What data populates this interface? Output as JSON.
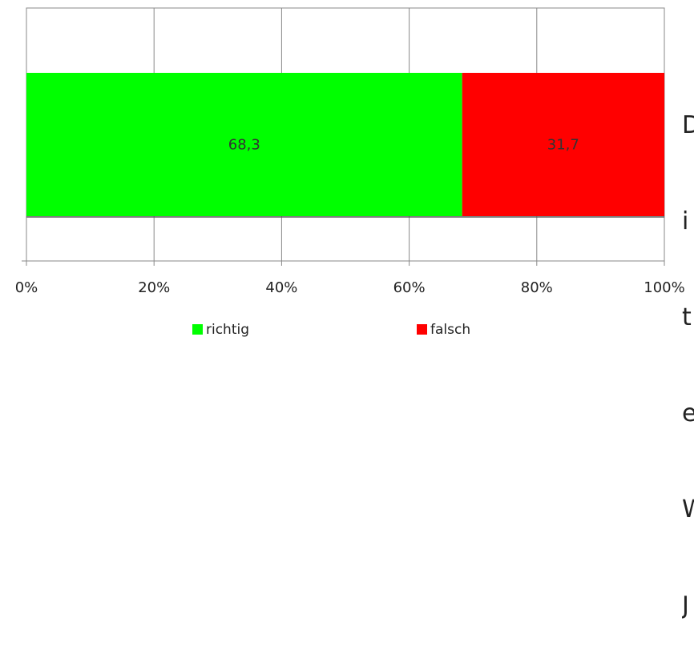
{
  "chart_data": {
    "type": "bar",
    "orientation": "horizontal",
    "stacked": "percent",
    "series": [
      {
        "name": "richtig",
        "values": [
          68.3
        ],
        "color": "#00ff00"
      },
      {
        "name": "falsch",
        "values": [
          31.7
        ],
        "color": "#ff0000"
      }
    ],
    "xlim": [
      0,
      100
    ],
    "x_ticks": [
      "0%",
      "20%",
      "40%",
      "60%",
      "80%",
      "100%"
    ],
    "data_labels": [
      "68,3",
      "31,7"
    ],
    "grid": true,
    "legend": "bottom"
  },
  "side_text": {
    "lines": [
      "D",
      "i",
      "t",
      "e",
      "W",
      "J"
    ]
  }
}
